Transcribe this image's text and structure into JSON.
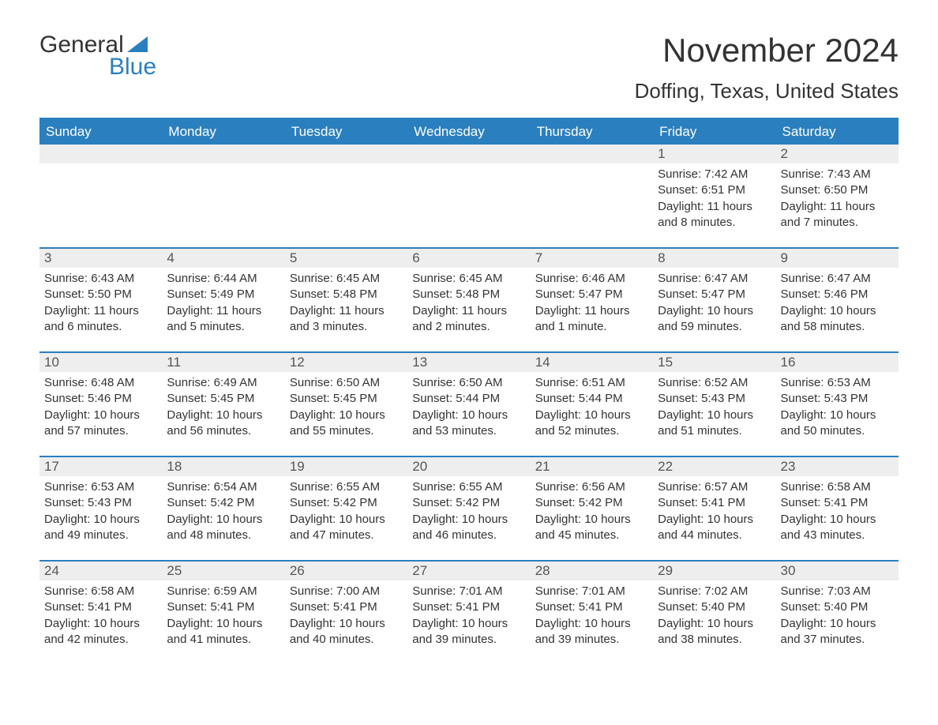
{
  "logo": {
    "text1": "General",
    "text2": "Blue",
    "sail_color": "#2a7fbf"
  },
  "title": "November 2024",
  "location": "Doffing, Texas, United States",
  "colors": {
    "header_bg": "#2a7fbf",
    "header_text": "#ffffff",
    "rule": "#2a7fbf",
    "daynum_bg": "#eeeeee",
    "body_text": "#333333"
  },
  "day_headers": [
    "Sunday",
    "Monday",
    "Tuesday",
    "Wednesday",
    "Thursday",
    "Friday",
    "Saturday"
  ],
  "weeks": [
    [
      {
        "day": "",
        "sunrise": "",
        "sunset": "",
        "daylight": ""
      },
      {
        "day": "",
        "sunrise": "",
        "sunset": "",
        "daylight": ""
      },
      {
        "day": "",
        "sunrise": "",
        "sunset": "",
        "daylight": ""
      },
      {
        "day": "",
        "sunrise": "",
        "sunset": "",
        "daylight": ""
      },
      {
        "day": "",
        "sunrise": "",
        "sunset": "",
        "daylight": ""
      },
      {
        "day": "1",
        "sunrise": "Sunrise: 7:42 AM",
        "sunset": "Sunset: 6:51 PM",
        "daylight": "Daylight: 11 hours and 8 minutes."
      },
      {
        "day": "2",
        "sunrise": "Sunrise: 7:43 AM",
        "sunset": "Sunset: 6:50 PM",
        "daylight": "Daylight: 11 hours and 7 minutes."
      }
    ],
    [
      {
        "day": "3",
        "sunrise": "Sunrise: 6:43 AM",
        "sunset": "Sunset: 5:50 PM",
        "daylight": "Daylight: 11 hours and 6 minutes."
      },
      {
        "day": "4",
        "sunrise": "Sunrise: 6:44 AM",
        "sunset": "Sunset: 5:49 PM",
        "daylight": "Daylight: 11 hours and 5 minutes."
      },
      {
        "day": "5",
        "sunrise": "Sunrise: 6:45 AM",
        "sunset": "Sunset: 5:48 PM",
        "daylight": "Daylight: 11 hours and 3 minutes."
      },
      {
        "day": "6",
        "sunrise": "Sunrise: 6:45 AM",
        "sunset": "Sunset: 5:48 PM",
        "daylight": "Daylight: 11 hours and 2 minutes."
      },
      {
        "day": "7",
        "sunrise": "Sunrise: 6:46 AM",
        "sunset": "Sunset: 5:47 PM",
        "daylight": "Daylight: 11 hours and 1 minute."
      },
      {
        "day": "8",
        "sunrise": "Sunrise: 6:47 AM",
        "sunset": "Sunset: 5:47 PM",
        "daylight": "Daylight: 10 hours and 59 minutes."
      },
      {
        "day": "9",
        "sunrise": "Sunrise: 6:47 AM",
        "sunset": "Sunset: 5:46 PM",
        "daylight": "Daylight: 10 hours and 58 minutes."
      }
    ],
    [
      {
        "day": "10",
        "sunrise": "Sunrise: 6:48 AM",
        "sunset": "Sunset: 5:46 PM",
        "daylight": "Daylight: 10 hours and 57 minutes."
      },
      {
        "day": "11",
        "sunrise": "Sunrise: 6:49 AM",
        "sunset": "Sunset: 5:45 PM",
        "daylight": "Daylight: 10 hours and 56 minutes."
      },
      {
        "day": "12",
        "sunrise": "Sunrise: 6:50 AM",
        "sunset": "Sunset: 5:45 PM",
        "daylight": "Daylight: 10 hours and 55 minutes."
      },
      {
        "day": "13",
        "sunrise": "Sunrise: 6:50 AM",
        "sunset": "Sunset: 5:44 PM",
        "daylight": "Daylight: 10 hours and 53 minutes."
      },
      {
        "day": "14",
        "sunrise": "Sunrise: 6:51 AM",
        "sunset": "Sunset: 5:44 PM",
        "daylight": "Daylight: 10 hours and 52 minutes."
      },
      {
        "day": "15",
        "sunrise": "Sunrise: 6:52 AM",
        "sunset": "Sunset: 5:43 PM",
        "daylight": "Daylight: 10 hours and 51 minutes."
      },
      {
        "day": "16",
        "sunrise": "Sunrise: 6:53 AM",
        "sunset": "Sunset: 5:43 PM",
        "daylight": "Daylight: 10 hours and 50 minutes."
      }
    ],
    [
      {
        "day": "17",
        "sunrise": "Sunrise: 6:53 AM",
        "sunset": "Sunset: 5:43 PM",
        "daylight": "Daylight: 10 hours and 49 minutes."
      },
      {
        "day": "18",
        "sunrise": "Sunrise: 6:54 AM",
        "sunset": "Sunset: 5:42 PM",
        "daylight": "Daylight: 10 hours and 48 minutes."
      },
      {
        "day": "19",
        "sunrise": "Sunrise: 6:55 AM",
        "sunset": "Sunset: 5:42 PM",
        "daylight": "Daylight: 10 hours and 47 minutes."
      },
      {
        "day": "20",
        "sunrise": "Sunrise: 6:55 AM",
        "sunset": "Sunset: 5:42 PM",
        "daylight": "Daylight: 10 hours and 46 minutes."
      },
      {
        "day": "21",
        "sunrise": "Sunrise: 6:56 AM",
        "sunset": "Sunset: 5:42 PM",
        "daylight": "Daylight: 10 hours and 45 minutes."
      },
      {
        "day": "22",
        "sunrise": "Sunrise: 6:57 AM",
        "sunset": "Sunset: 5:41 PM",
        "daylight": "Daylight: 10 hours and 44 minutes."
      },
      {
        "day": "23",
        "sunrise": "Sunrise: 6:58 AM",
        "sunset": "Sunset: 5:41 PM",
        "daylight": "Daylight: 10 hours and 43 minutes."
      }
    ],
    [
      {
        "day": "24",
        "sunrise": "Sunrise: 6:58 AM",
        "sunset": "Sunset: 5:41 PM",
        "daylight": "Daylight: 10 hours and 42 minutes."
      },
      {
        "day": "25",
        "sunrise": "Sunrise: 6:59 AM",
        "sunset": "Sunset: 5:41 PM",
        "daylight": "Daylight: 10 hours and 41 minutes."
      },
      {
        "day": "26",
        "sunrise": "Sunrise: 7:00 AM",
        "sunset": "Sunset: 5:41 PM",
        "daylight": "Daylight: 10 hours and 40 minutes."
      },
      {
        "day": "27",
        "sunrise": "Sunrise: 7:01 AM",
        "sunset": "Sunset: 5:41 PM",
        "daylight": "Daylight: 10 hours and 39 minutes."
      },
      {
        "day": "28",
        "sunrise": "Sunrise: 7:01 AM",
        "sunset": "Sunset: 5:41 PM",
        "daylight": "Daylight: 10 hours and 39 minutes."
      },
      {
        "day": "29",
        "sunrise": "Sunrise: 7:02 AM",
        "sunset": "Sunset: 5:40 PM",
        "daylight": "Daylight: 10 hours and 38 minutes."
      },
      {
        "day": "30",
        "sunrise": "Sunrise: 7:03 AM",
        "sunset": "Sunset: 5:40 PM",
        "daylight": "Daylight: 10 hours and 37 minutes."
      }
    ]
  ]
}
